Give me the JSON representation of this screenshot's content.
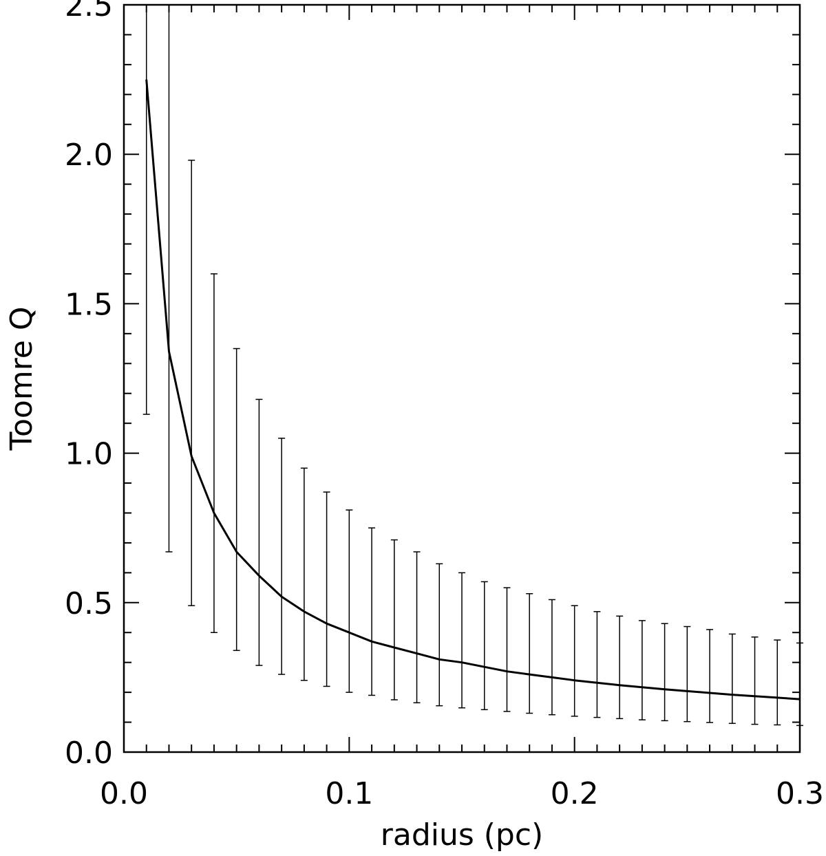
{
  "chart_data": {
    "type": "line",
    "title": "",
    "xlabel": "radius (pc)",
    "ylabel": "Toomre Q",
    "xlim": [
      0.0,
      0.3
    ],
    "ylim": [
      0.0,
      2.5
    ],
    "xticks": [
      "0.0",
      "0.1",
      "0.2",
      "0.3"
    ],
    "yticks": [
      "0.0",
      "0.5",
      "1.0",
      "1.5",
      "2.0",
      "2.5"
    ],
    "grid": false,
    "legend": "none",
    "line_color": "#000000",
    "series": [
      {
        "x": [
          0.01,
          0.02,
          0.03,
          0.04,
          0.05,
          0.06,
          0.07,
          0.08,
          0.09,
          0.1,
          0.11,
          0.12,
          0.13,
          0.14,
          0.15,
          0.16,
          0.17,
          0.18,
          0.19,
          0.2,
          0.21,
          0.22,
          0.23,
          0.24,
          0.25,
          0.26,
          0.27,
          0.28,
          0.29,
          0.3
        ],
        "y": [
          2.25,
          1.34,
          0.99,
          0.8,
          0.67,
          0.59,
          0.52,
          0.47,
          0.43,
          0.4,
          0.37,
          0.35,
          0.33,
          0.31,
          0.3,
          0.285,
          0.27,
          0.26,
          0.25,
          0.24,
          0.232,
          0.224,
          0.217,
          0.21,
          0.204,
          0.198,
          0.192,
          0.187,
          0.182,
          0.177
        ],
        "err_lower": [
          1.13,
          0.67,
          0.49,
          0.4,
          0.34,
          0.29,
          0.26,
          0.24,
          0.22,
          0.2,
          0.19,
          0.175,
          0.165,
          0.155,
          0.148,
          0.142,
          0.136,
          0.13,
          0.125,
          0.12,
          0.116,
          0.112,
          0.108,
          0.105,
          0.102,
          0.099,
          0.096,
          0.093,
          0.091,
          0.089
        ],
        "err_upper": [
          2.5,
          2.5,
          1.98,
          1.6,
          1.35,
          1.18,
          1.05,
          0.95,
          0.87,
          0.81,
          0.75,
          0.71,
          0.67,
          0.63,
          0.6,
          0.57,
          0.55,
          0.53,
          0.51,
          0.49,
          0.47,
          0.455,
          0.44,
          0.43,
          0.42,
          0.41,
          0.395,
          0.385,
          0.375,
          0.365
        ]
      }
    ]
  }
}
